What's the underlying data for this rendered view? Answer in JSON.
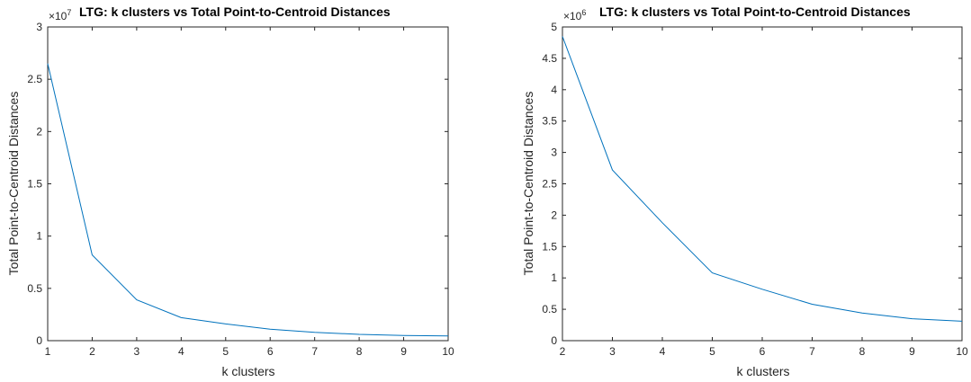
{
  "chart_data": [
    {
      "type": "line",
      "title": "LTG: k clusters vs Total Point-to-Centroid Distances",
      "xlabel": "k clusters",
      "ylabel": "Total Point-to-Centroid Distances",
      "exponent_base": "×10",
      "exponent": "7",
      "x": [
        1,
        2,
        3,
        4,
        5,
        6,
        7,
        8,
        9,
        10
      ],
      "values": [
        2.65,
        0.82,
        0.39,
        0.22,
        0.16,
        0.11,
        0.08,
        0.06,
        0.05,
        0.045
      ],
      "xlim": [
        1,
        10
      ],
      "ylim": [
        0,
        3
      ],
      "xticks": [
        "1",
        "2",
        "3",
        "4",
        "5",
        "6",
        "7",
        "8",
        "9",
        "10"
      ],
      "yticks": [
        "0",
        "0.5",
        "1",
        "1.5",
        "2",
        "2.5",
        "3"
      ],
      "line_color": "#0072BD",
      "grid": false
    },
    {
      "type": "line",
      "title": "LTG: k clusters vs Total Point-to-Centroid Distances",
      "xlabel": "k clusters",
      "ylabel": "Total Point-to-Centroid Distances",
      "exponent_base": "×10",
      "exponent": "6",
      "x": [
        2,
        3,
        4,
        5,
        6,
        7,
        8,
        9,
        10
      ],
      "values": [
        4.85,
        2.72,
        1.88,
        1.08,
        0.82,
        0.58,
        0.44,
        0.35,
        0.31
      ],
      "xlim": [
        2,
        10
      ],
      "ylim": [
        0,
        5
      ],
      "xticks": [
        "2",
        "3",
        "4",
        "5",
        "6",
        "7",
        "8",
        "9",
        "10"
      ],
      "yticks": [
        "0",
        "0.5",
        "1",
        "1.5",
        "2",
        "2.5",
        "3",
        "3.5",
        "4",
        "4.5",
        "5"
      ],
      "line_color": "#0072BD",
      "grid": false
    }
  ]
}
